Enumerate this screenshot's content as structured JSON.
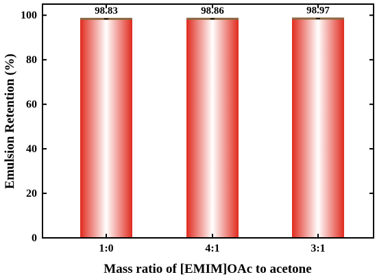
{
  "chart_data": {
    "type": "bar",
    "categories": [
      "1:0",
      "4:1",
      "3:1"
    ],
    "values": [
      98.83,
      98.86,
      98.97
    ],
    "data_labels": [
      "98.83",
      "98.86",
      "98.97"
    ],
    "title": "",
    "xlabel": "Mass ratio of [EMIM]OAc to acetone",
    "ylabel": "Emulsion Retention (%)",
    "ylim": [
      0,
      105
    ],
    "yticks": [
      0,
      20,
      40,
      60,
      80,
      100
    ],
    "grid": false,
    "legend": "none",
    "error_bars": true,
    "colors": {
      "bar_edge": "#e02a1e",
      "bar_center": "#ffffff",
      "bar_top": "#8a6a45",
      "axis": "#000000"
    }
  }
}
